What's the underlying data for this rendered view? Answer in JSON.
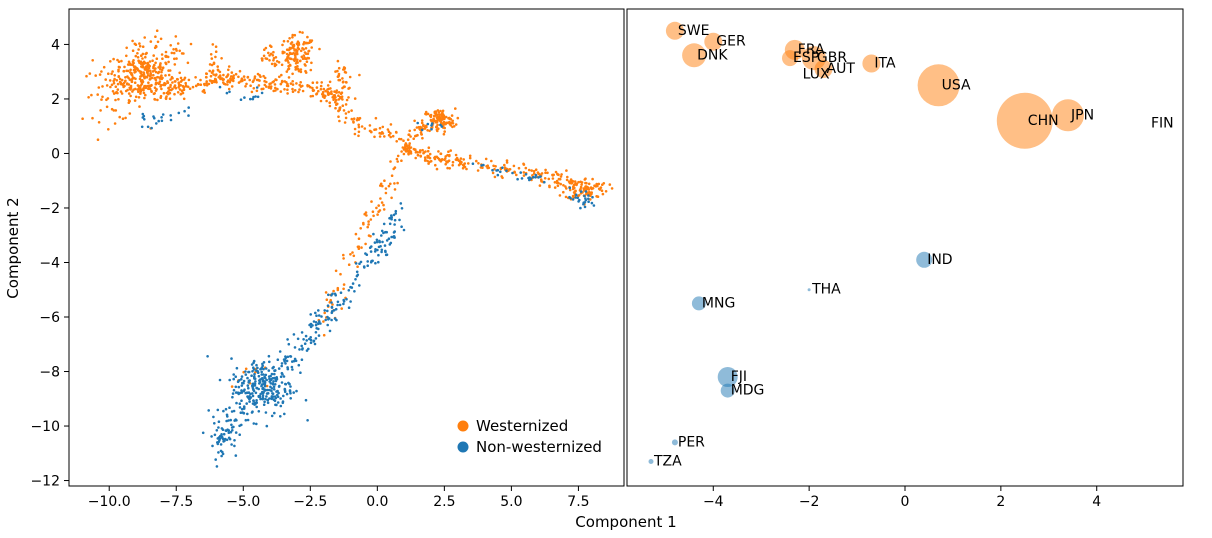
{
  "chart_data": [
    {
      "type": "scatter",
      "panel": "left",
      "xlabel": "",
      "ylabel": "Component 2",
      "xlim": [
        -11.5,
        9.2
      ],
      "ylim": [
        -12.2,
        5.3
      ],
      "xticks": [
        -10.0,
        -7.5,
        -5.0,
        -2.5,
        0.0,
        2.5,
        5.0,
        7.5
      ],
      "xtick_labels": [
        "−10.0",
        "−7.5",
        "−5.0",
        "−2.5",
        "0.0",
        "2.5",
        "5.0",
        "7.5"
      ],
      "yticks": [
        -12,
        -10,
        -8,
        -6,
        -4,
        -2,
        0,
        2,
        4
      ],
      "ytick_labels": [
        "−12",
        "−10",
        "−8",
        "−6",
        "−4",
        "−2",
        "0",
        "2",
        "4"
      ],
      "legend_position": "lower-right",
      "series": [
        {
          "name": "Westernized",
          "color": "#ff7f0e",
          "clusters": [
            {
              "cx": -8.7,
              "cy": 2.9,
              "sx": 0.55,
              "sy": 0.45,
              "n": 260
            },
            {
              "cx": -9.8,
              "cy": 2.2,
              "sx": 0.6,
              "sy": 0.5,
              "n": 70
            },
            {
              "cx": -7.7,
              "cy": 2.4,
              "sx": 0.4,
              "sy": 0.35,
              "n": 40
            },
            {
              "cx": -3.0,
              "cy": 3.6,
              "sx": 0.35,
              "sy": 0.35,
              "n": 130
            },
            {
              "cx": -1.3,
              "cy": 2.6,
              "sx": 0.2,
              "sy": 0.35,
              "n": 40
            },
            {
              "cx": 2.3,
              "cy": 1.2,
              "sx": 0.3,
              "sy": 0.22,
              "n": 110
            },
            {
              "cx": 7.8,
              "cy": -1.3,
              "sx": 0.4,
              "sy": 0.2,
              "n": 90
            },
            {
              "cx": -4.8,
              "cy": -8.3,
              "sx": 0.6,
              "sy": 0.4,
              "n": 10
            }
          ],
          "paths": [
            {
              "points": [
                [
                  -7.8,
                  2.5
                ],
                [
                  -6.5,
                  2.6
                ],
                [
                  -5.5,
                  2.8
                ],
                [
                  -4.2,
                  2.5
                ],
                [
                  -3.2,
                  2.5
                ],
                [
                  -2.2,
                  2.3
                ],
                [
                  -1.3,
                  2.0
                ]
              ],
              "n": 240,
              "spread": 0.18
            },
            {
              "points": [
                [
                  -6.2,
                  2.6
                ],
                [
                  -6.0,
                  3.4
                ],
                [
                  -6.3,
                  3.9
                ]
              ],
              "n": 18,
              "spread": 0.2
            },
            {
              "points": [
                [
                  -9.0,
                  3.7
                ],
                [
                  -8.0,
                  4.0
                ],
                [
                  -7.0,
                  3.7
                ]
              ],
              "n": 30,
              "spread": 0.25
            },
            {
              "points": [
                [
                  -4.3,
                  3.7
                ],
                [
                  -3.8,
                  3.5
                ]
              ],
              "n": 20,
              "spread": 0.15
            },
            {
              "points": [
                [
                  -1.5,
                  1.8
                ],
                [
                  -0.9,
                  1.1
                ],
                [
                  0.0,
                  0.8
                ],
                [
                  1.0,
                  0.6
                ],
                [
                  1.8,
                  0.9
                ]
              ],
              "n": 90,
              "spread": 0.15
            },
            {
              "points": [
                [
                  1.0,
                  0.2
                ],
                [
                  2.0,
                  -0.2
                ],
                [
                  3.5,
                  -0.4
                ],
                [
                  5.0,
                  -0.6
                ],
                [
                  6.5,
                  -0.9
                ],
                [
                  7.5,
                  -1.2
                ]
              ],
              "n": 220,
              "spread": 0.15
            },
            {
              "points": [
                [
                  1.0,
                  0.2
                ],
                [
                  0.3,
                  -1.5
                ],
                [
                  -0.5,
                  -3.0
                ],
                [
                  -1.2,
                  -4.5
                ],
                [
                  -2.0,
                  -6.0
                ]
              ],
              "n": 90,
              "spread": 0.3
            }
          ]
        },
        {
          "name": "Non-westernized",
          "color": "#1f77b4",
          "clusters": [
            {
              "cx": -4.3,
              "cy": -8.6,
              "sx": 0.6,
              "sy": 0.55,
              "n": 230
            },
            {
              "cx": -5.8,
              "cy": -10.4,
              "sx": 0.3,
              "sy": 0.4,
              "n": 40
            },
            {
              "cx": 7.6,
              "cy": -1.7,
              "sx": 0.3,
              "sy": 0.2,
              "n": 25
            }
          ],
          "paths": [
            {
              "points": [
                [
                  -5.8,
                  -10.5
                ],
                [
                  -4.5,
                  -8.7
                ],
                [
                  -3.2,
                  -7.5
                ],
                [
                  -2.2,
                  -6.2
                ],
                [
                  -1.0,
                  -5.0
                ],
                [
                  0.0,
                  -3.5
                ],
                [
                  0.8,
                  -2.2
                ]
              ],
              "n": 260,
              "spread": 0.3
            },
            {
              "points": [
                [
                  -9.0,
                  1.2
                ],
                [
                  -8.0,
                  1.3
                ],
                [
                  -7.0,
                  1.4
                ]
              ],
              "n": 20,
              "spread": 0.15
            },
            {
              "points": [
                [
                  -5.8,
                  2.2
                ],
                [
                  -5.0,
                  2.1
                ],
                [
                  -4.0,
                  2.2
                ]
              ],
              "n": 12,
              "spread": 0.15
            },
            {
              "points": [
                [
                  1.5,
                  1.0
                ],
                [
                  2.6,
                  1.0
                ]
              ],
              "n": 8,
              "spread": 0.12
            },
            {
              "points": [
                [
                  3.5,
                  -0.5
                ],
                [
                  5.0,
                  -0.7
                ],
                [
                  6.5,
                  -1.1
                ]
              ],
              "n": 25,
              "spread": 0.12
            }
          ]
        }
      ]
    },
    {
      "type": "scatter",
      "panel": "right",
      "xlabel": "",
      "ylabel": "",
      "xlim": [
        -5.8,
        5.8
      ],
      "ylim": [
        -12.2,
        5.3
      ],
      "xticks": [
        -4,
        -2,
        0,
        2,
        4
      ],
      "xtick_labels": [
        "−4",
        "−2",
        "0",
        "2",
        "4"
      ],
      "points": [
        {
          "label": "SWE",
          "x": -4.8,
          "y": 4.5,
          "size": 9,
          "group": "Westernized"
        },
        {
          "label": "GER",
          "x": -4.0,
          "y": 4.1,
          "size": 9,
          "group": "Westernized"
        },
        {
          "label": "DNK",
          "x": -4.4,
          "y": 3.6,
          "size": 12,
          "group": "Westernized"
        },
        {
          "label": "FRA",
          "x": -2.3,
          "y": 3.8,
          "size": 10,
          "group": "Westernized"
        },
        {
          "label": "ESP",
          "x": -2.4,
          "y": 3.5,
          "size": 8,
          "group": "Westernized"
        },
        {
          "label": "GBR",
          "x": -1.9,
          "y": 3.5,
          "size": 12,
          "group": "Westernized"
        },
        {
          "label": "AUT",
          "x": -1.7,
          "y": 3.1,
          "size": 9,
          "group": "Westernized"
        },
        {
          "label": "ITA",
          "x": -0.7,
          "y": 3.3,
          "size": 9,
          "group": "Westernized"
        },
        {
          "label": "LUX",
          "x": -2.2,
          "y": 2.9,
          "size": 0,
          "group": "Westernized"
        },
        {
          "label": "USA",
          "x": 0.7,
          "y": 2.5,
          "size": 21,
          "group": "Westernized"
        },
        {
          "label": "CHN",
          "x": 2.5,
          "y": 1.2,
          "size": 28,
          "group": "Westernized"
        },
        {
          "label": "JPN",
          "x": 3.4,
          "y": 1.4,
          "size": 16,
          "group": "Westernized"
        },
        {
          "label": "FIN",
          "x": 5.5,
          "y": 1.1,
          "size": 0,
          "group": "Westernized"
        },
        {
          "label": "IND",
          "x": 0.4,
          "y": -3.9,
          "size": 8,
          "group": "Non-westernized"
        },
        {
          "label": "THA",
          "x": -2.0,
          "y": -5.0,
          "size": 1.5,
          "group": "Non-westernized"
        },
        {
          "label": "MNG",
          "x": -4.3,
          "y": -5.5,
          "size": 7,
          "group": "Non-westernized"
        },
        {
          "label": "FJI",
          "x": -3.7,
          "y": -8.2,
          "size": 10,
          "group": "Non-westernized"
        },
        {
          "label": "MDG",
          "x": -3.7,
          "y": -8.7,
          "size": 7,
          "group": "Non-westernized"
        },
        {
          "label": "PER",
          "x": -4.8,
          "y": -10.6,
          "size": 3,
          "group": "Non-westernized"
        },
        {
          "label": "TZA",
          "x": -5.3,
          "y": -11.3,
          "size": 2.5,
          "group": "Non-westernized"
        }
      ]
    }
  ],
  "shared_xlabel": "Component 1",
  "legend": [
    {
      "label": "Westernized",
      "color": "#ff7f0e"
    },
    {
      "label": "Non-westernized",
      "color": "#1f77b4"
    }
  ]
}
